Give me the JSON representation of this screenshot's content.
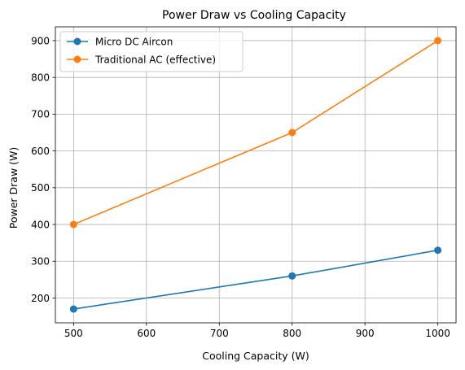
{
  "chart_data": {
    "type": "line",
    "title": "Power Draw vs Cooling Capacity",
    "xlabel": "Cooling Capacity (W)",
    "ylabel": "Power Draw (W)",
    "x": [
      500,
      800,
      1000
    ],
    "series": [
      {
        "name": "Micro DC Aircon",
        "values": [
          170,
          260,
          330
        ],
        "color": "#1f77b4"
      },
      {
        "name": "Traditional AC (effective)",
        "values": [
          400,
          650,
          900
        ],
        "color": "#ff7f0e"
      }
    ],
    "xlim": [
      475,
      1025
    ],
    "ylim": [
      132.5,
      937.5
    ],
    "xticks": [
      500,
      600,
      700,
      800,
      900,
      1000
    ],
    "yticks": [
      200,
      300,
      400,
      500,
      600,
      700,
      800,
      900
    ],
    "grid": true,
    "legend_position": "upper-left"
  }
}
